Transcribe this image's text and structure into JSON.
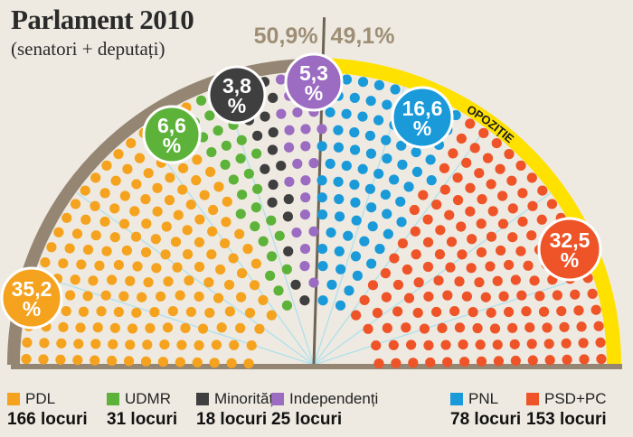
{
  "chart_data": {
    "type": "parliament",
    "title": "Parlament 2010",
    "subtitle": "(senatori + deputați)",
    "split": {
      "left": "50,9%",
      "right": "49,1%"
    },
    "opposition_label": "OPOZIȚIE",
    "parties": [
      {
        "name": "PDL",
        "seats_label": "166 locuri",
        "seats": 166,
        "percent_label": "35,2 %",
        "color": "#f5a21e"
      },
      {
        "name": "UDMR",
        "seats_label": "31 locuri",
        "seats": 31,
        "percent_label": "6,6 %",
        "color": "#5db339"
      },
      {
        "name": "Minorități",
        "seats_label": "18 locuri",
        "seats": 18,
        "percent_label": "3,8 %",
        "color": "#3f3f3f"
      },
      {
        "name": "Independenți",
        "seats_label": "25 locuri",
        "seats": 25,
        "percent_label": "5,3 %",
        "color": "#9b6cc1"
      },
      {
        "name": "PNL",
        "seats_label": "78 locuri",
        "seats": 78,
        "percent_label": "16,6 %",
        "color": "#1a9ad9"
      },
      {
        "name": "PSD+PC",
        "seats_label": "153 locuri",
        "seats": 153,
        "percent_label": "32,5 %",
        "color": "#ee5427"
      }
    ],
    "colors": {
      "government_arc": "#958573",
      "opposition_arc": "#ffe100",
      "spoke": "#aee0ec",
      "text_split": "#9e8e76"
    }
  }
}
